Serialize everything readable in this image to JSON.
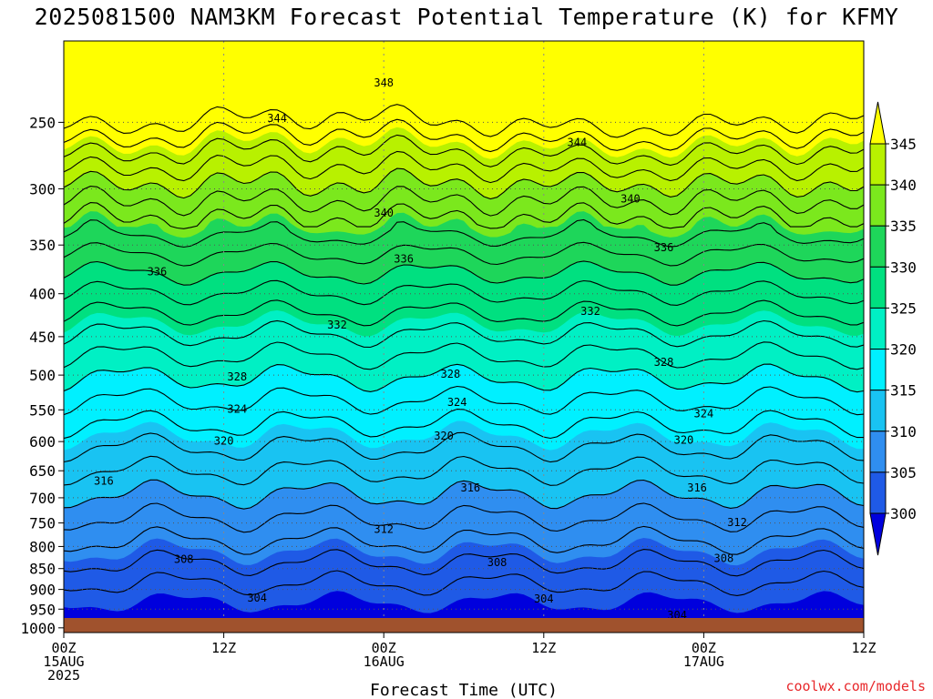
{
  "chart_data": {
    "type": "heatmap",
    "title": "2025081500 NAM3KM Forecast Potential Temperature (K) for KFMY",
    "xlabel": "Forecast Time (UTC)",
    "ylabel": "",
    "x_range_hours": [
      0,
      60
    ],
    "x_ticks": [
      {
        "hour": 0,
        "lines": [
          "00Z",
          "15AUG",
          "2025"
        ]
      },
      {
        "hour": 12,
        "lines": [
          "12Z"
        ]
      },
      {
        "hour": 24,
        "lines": [
          "00Z",
          "16AUG"
        ]
      },
      {
        "hour": 36,
        "lines": [
          "12Z"
        ]
      },
      {
        "hour": 48,
        "lines": [
          "00Z",
          "17AUG"
        ]
      },
      {
        "hour": 60,
        "lines": [
          "12Z"
        ]
      }
    ],
    "y_scale": "log-pressure",
    "y_range_hpa": [
      1013,
      200
    ],
    "y_ticks": [
      1000,
      950,
      900,
      850,
      800,
      750,
      700,
      650,
      600,
      550,
      500,
      450,
      400,
      350,
      300,
      250
    ],
    "grid": true,
    "shading_levels": [
      300,
      305,
      310,
      315,
      320,
      325,
      330,
      335,
      340,
      345
    ],
    "shading_colors": [
      "#0000dd",
      "#1f5ae6",
      "#2f8ef0",
      "#19c3f2",
      "#00f0ff",
      "#00f0c4",
      "#00e080",
      "#1ed65a",
      "#7be81d",
      "#b8f100",
      "#ffff00"
    ],
    "colorbar_labels": [
      "345",
      "340",
      "335",
      "330",
      "325",
      "320",
      "315",
      "310",
      "305",
      "300"
    ],
    "contour_interval": 2,
    "contour_levels": [
      302,
      304,
      306,
      308,
      310,
      312,
      314,
      316,
      318,
      320,
      322,
      324,
      326,
      328,
      330,
      332,
      334,
      336,
      338,
      340,
      342,
      344,
      346,
      348
    ],
    "contour_labels": [
      {
        "level": 304,
        "hour": 14.5,
        "p": 920
      },
      {
        "level": 304,
        "hour": 36,
        "p": 922
      },
      {
        "level": 304,
        "hour": 46,
        "p": 965
      },
      {
        "level": 308,
        "hour": 9,
        "p": 828
      },
      {
        "level": 308,
        "hour": 32.5,
        "p": 835
      },
      {
        "level": 308,
        "hour": 49.5,
        "p": 825
      },
      {
        "level": 312,
        "hour": 24,
        "p": 762
      },
      {
        "level": 312,
        "hour": 50.5,
        "p": 748
      },
      {
        "level": 316,
        "hour": 3,
        "p": 668
      },
      {
        "level": 316,
        "hour": 30.5,
        "p": 680
      },
      {
        "level": 316,
        "hour": 47.5,
        "p": 680
      },
      {
        "level": 320,
        "hour": 12,
        "p": 598
      },
      {
        "level": 320,
        "hour": 28.5,
        "p": 590
      },
      {
        "level": 320,
        "hour": 46.5,
        "p": 597
      },
      {
        "level": 324,
        "hour": 13,
        "p": 548
      },
      {
        "level": 324,
        "hour": 29.5,
        "p": 538
      },
      {
        "level": 324,
        "hour": 48,
        "p": 555
      },
      {
        "level": 328,
        "hour": 13,
        "p": 502
      },
      {
        "level": 328,
        "hour": 29,
        "p": 498
      },
      {
        "level": 328,
        "hour": 45,
        "p": 482
      },
      {
        "level": 332,
        "hour": 20.5,
        "p": 435
      },
      {
        "level": 332,
        "hour": 39.5,
        "p": 419
      },
      {
        "level": 336,
        "hour": 7,
        "p": 376
      },
      {
        "level": 336,
        "hour": 25.5,
        "p": 363
      },
      {
        "level": 336,
        "hour": 45,
        "p": 352
      },
      {
        "level": 340,
        "hour": 24,
        "p": 320
      },
      {
        "level": 340,
        "hour": 42.5,
        "p": 308
      },
      {
        "level": 344,
        "hour": 16,
        "p": 247
      },
      {
        "level": 344,
        "hour": 38.5,
        "p": 264
      },
      {
        "level": 348,
        "hour": 24,
        "p": 224
      }
    ],
    "terrain_color": "#a0522d"
  },
  "credit": "coolwx.com/models"
}
